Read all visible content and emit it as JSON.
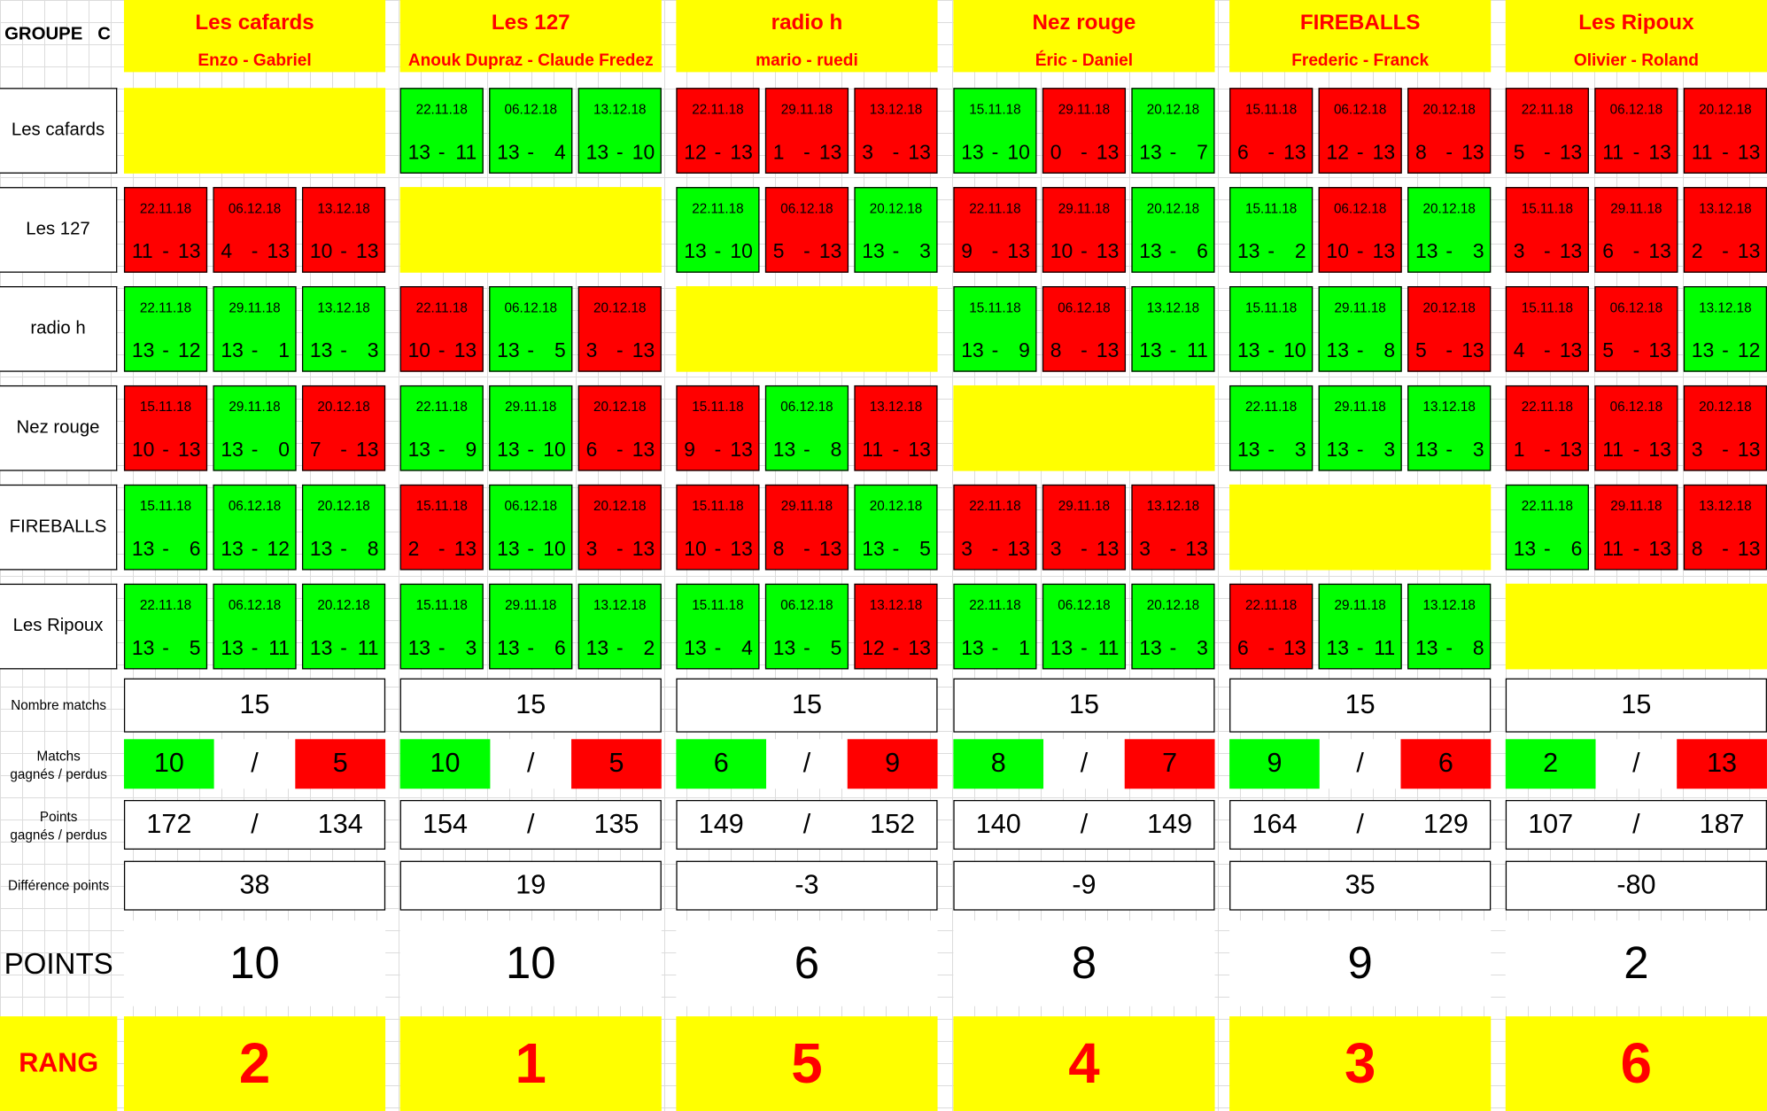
{
  "group_label": "GROUPE   C",
  "teams": [
    {
      "name": "Les cafards",
      "players": "Enzo - Gabriel",
      "nombre_matchs": "15",
      "matchs_gagnes": "10",
      "matchs_perdus": "5",
      "points_gagnes": "172",
      "points_perdus": "134",
      "difference": "38",
      "points": "10",
      "rang": "2"
    },
    {
      "name": "Les 127",
      "players": "Anouk Dupraz - Claude Fredez",
      "nombre_matchs": "15",
      "matchs_gagnes": "10",
      "matchs_perdus": "5",
      "points_gagnes": "154",
      "points_perdus": "135",
      "difference": "19",
      "points": "10",
      "rang": "1"
    },
    {
      "name": "radio h",
      "players": "mario - ruedi",
      "nombre_matchs": "15",
      "matchs_gagnes": "6",
      "matchs_perdus": "9",
      "points_gagnes": "149",
      "points_perdus": "152",
      "difference": "-3",
      "points": "6",
      "rang": "5"
    },
    {
      "name": "Nez rouge",
      "players": "Éric - Daniel",
      "nombre_matchs": "15",
      "matchs_gagnes": "8",
      "matchs_perdus": "7",
      "points_gagnes": "140",
      "points_perdus": "149",
      "difference": "-9",
      "points": "8",
      "rang": "4"
    },
    {
      "name": "FIREBALLS",
      "players": "Frederic - Franck",
      "nombre_matchs": "15",
      "matchs_gagnes": "9",
      "matchs_perdus": "6",
      "points_gagnes": "164",
      "points_perdus": "129",
      "difference": "35",
      "points": "9",
      "rang": "3"
    },
    {
      "name": "Les Ripoux",
      "players": "Olivier - Roland",
      "nombre_matchs": "15",
      "matchs_gagnes": "2",
      "matchs_perdus": "13",
      "points_gagnes": "107",
      "points_perdus": "187",
      "difference": "-80",
      "points": "2",
      "rang": "6"
    }
  ],
  "row_labels": {
    "nombre_matchs": "Nombre matchs",
    "matchs": "Matchs\ngagnés / perdus",
    "points_gp": "Points\ngagnés / perdus",
    "difference": "Différence points",
    "points": "POINTS",
    "rang": "RANG"
  },
  "slash": "/",
  "score_sep": "-",
  "colors": {
    "win": "#00ff00",
    "loss": "#ff0000",
    "highlight": "#ffff00",
    "header_text": "#ff0000"
  },
  "results": [
    [
      null,
      [
        [
          "22.11.18",
          13,
          11
        ],
        [
          "06.12.18",
          13,
          4
        ],
        [
          "13.12.18",
          13,
          10
        ]
      ],
      [
        [
          "22.11.18",
          12,
          13
        ],
        [
          "29.11.18",
          1,
          13
        ],
        [
          "13.12.18",
          3,
          13
        ]
      ],
      [
        [
          "15.11.18",
          13,
          10
        ],
        [
          "29.11.18",
          0,
          13
        ],
        [
          "20.12.18",
          13,
          7
        ]
      ],
      [
        [
          "15.11.18",
          6,
          13
        ],
        [
          "06.12.18",
          12,
          13
        ],
        [
          "20.12.18",
          8,
          13
        ]
      ],
      [
        [
          "22.11.18",
          5,
          13
        ],
        [
          "06.12.18",
          11,
          13
        ],
        [
          "20.12.18",
          11,
          13
        ]
      ]
    ],
    [
      [
        [
          "22.11.18",
          11,
          13
        ],
        [
          "06.12.18",
          4,
          13
        ],
        [
          "13.12.18",
          10,
          13
        ]
      ],
      null,
      [
        [
          "22.11.18",
          13,
          10
        ],
        [
          "06.12.18",
          5,
          13
        ],
        [
          "20.12.18",
          13,
          3
        ]
      ],
      [
        [
          "22.11.18",
          9,
          13
        ],
        [
          "29.11.18",
          10,
          13
        ],
        [
          "20.12.18",
          13,
          6
        ]
      ],
      [
        [
          "15.11.18",
          13,
          2
        ],
        [
          "06.12.18",
          10,
          13
        ],
        [
          "20.12.18",
          13,
          3
        ]
      ],
      [
        [
          "15.11.18",
          3,
          13
        ],
        [
          "29.11.18",
          6,
          13
        ],
        [
          "13.12.18",
          2,
          13
        ]
      ]
    ],
    [
      [
        [
          "22.11.18",
          13,
          12
        ],
        [
          "29.11.18",
          13,
          1
        ],
        [
          "13.12.18",
          13,
          3
        ]
      ],
      [
        [
          "22.11.18",
          10,
          13
        ],
        [
          "06.12.18",
          13,
          5
        ],
        [
          "20.12.18",
          3,
          13
        ]
      ],
      null,
      [
        [
          "15.11.18",
          13,
          9
        ],
        [
          "06.12.18",
          8,
          13
        ],
        [
          "13.12.18",
          13,
          11
        ]
      ],
      [
        [
          "15.11.18",
          13,
          10
        ],
        [
          "29.11.18",
          13,
          8
        ],
        [
          "20.12.18",
          5,
          13
        ]
      ],
      [
        [
          "15.11.18",
          4,
          13
        ],
        [
          "06.12.18",
          5,
          13
        ],
        [
          "13.12.18",
          13,
          12
        ]
      ]
    ],
    [
      [
        [
          "15.11.18",
          10,
          13
        ],
        [
          "29.11.18",
          13,
          0
        ],
        [
          "20.12.18",
          7,
          13
        ]
      ],
      [
        [
          "22.11.18",
          13,
          9
        ],
        [
          "29.11.18",
          13,
          10
        ],
        [
          "20.12.18",
          6,
          13
        ]
      ],
      [
        [
          "15.11.18",
          9,
          13
        ],
        [
          "06.12.18",
          13,
          8
        ],
        [
          "13.12.18",
          11,
          13
        ]
      ],
      null,
      [
        [
          "22.11.18",
          13,
          3
        ],
        [
          "29.11.18",
          13,
          3
        ],
        [
          "13.12.18",
          13,
          3
        ]
      ],
      [
        [
          "22.11.18",
          1,
          13
        ],
        [
          "06.12.18",
          11,
          13
        ],
        [
          "20.12.18",
          3,
          13
        ]
      ]
    ],
    [
      [
        [
          "15.11.18",
          13,
          6
        ],
        [
          "06.12.18",
          13,
          12
        ],
        [
          "20.12.18",
          13,
          8
        ]
      ],
      [
        [
          "15.11.18",
          2,
          13
        ],
        [
          "06.12.18",
          13,
          10
        ],
        [
          "20.12.18",
          3,
          13
        ]
      ],
      [
        [
          "15.11.18",
          10,
          13
        ],
        [
          "29.11.18",
          8,
          13
        ],
        [
          "20.12.18",
          13,
          5
        ]
      ],
      [
        [
          "22.11.18",
          3,
          13
        ],
        [
          "29.11.18",
          3,
          13
        ],
        [
          "13.12.18",
          3,
          13
        ]
      ],
      null,
      [
        [
          "22.11.18",
          13,
          6
        ],
        [
          "29.11.18",
          11,
          13
        ],
        [
          "13.12.18",
          8,
          13
        ]
      ]
    ],
    [
      [
        [
          "22.11.18",
          13,
          5
        ],
        [
          "06.12.18",
          13,
          11
        ],
        [
          "20.12.18",
          13,
          11
        ]
      ],
      [
        [
          "15.11.18",
          13,
          3
        ],
        [
          "29.11.18",
          13,
          6
        ],
        [
          "13.12.18",
          13,
          2
        ]
      ],
      [
        [
          "15.11.18",
          13,
          4
        ],
        [
          "06.12.18",
          13,
          5
        ],
        [
          "13.12.18",
          12,
          13
        ]
      ],
      [
        [
          "22.11.18",
          13,
          1
        ],
        [
          "06.12.18",
          13,
          11
        ],
        [
          "20.12.18",
          13,
          3
        ]
      ],
      [
        [
          "22.11.18",
          6,
          13
        ],
        [
          "29.11.18",
          13,
          11
        ],
        [
          "13.12.18",
          13,
          8
        ]
      ],
      null
    ]
  ]
}
